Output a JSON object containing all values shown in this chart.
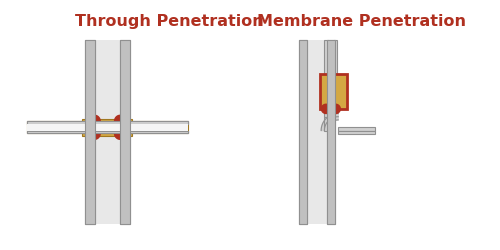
{
  "title_left": "Through Penetration",
  "title_right": "Membrane Penetration",
  "title_color": "#B03020",
  "title_fontsize": 11.5,
  "bg_color": "#FFFFFF",
  "wall_color": "#C0C0C0",
  "wall_edge_color": "#909090",
  "wall_inner_color": "#E8E8E8",
  "pipe_color": "#D0D0D0",
  "pipe_edge_color": "#909090",
  "firestop_color": "#B03020",
  "intumescent_color": "#D4A843",
  "intumescent_edge": "#A07820"
}
